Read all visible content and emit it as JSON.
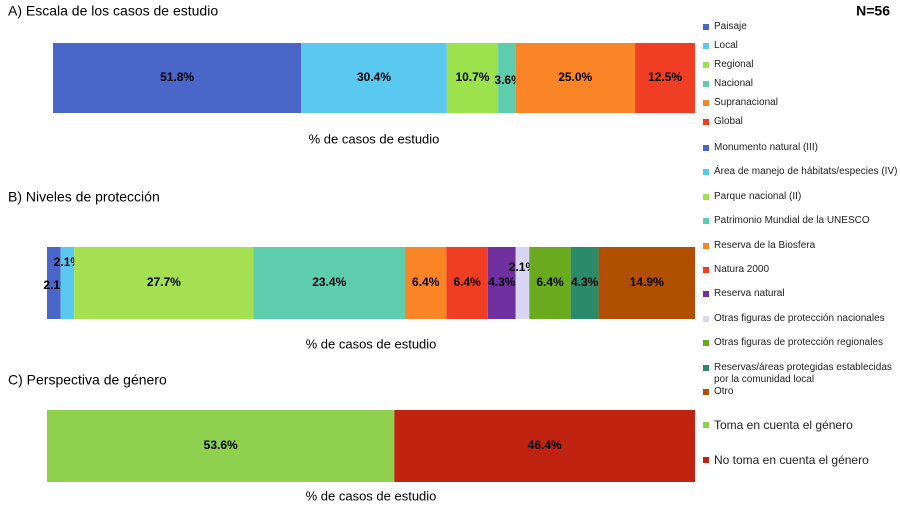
{
  "chart_data": [
    {
      "type": "bar",
      "orientation": "horizontal",
      "stacked": true,
      "title": "A) Escala de los casos de estudio",
      "annotation": "N=56",
      "x_label": "% de casos de estudio",
      "series": [
        {
          "name": "Paisaje",
          "color": "#4a66c8",
          "values": [
            51.8
          ],
          "value_labels": [
            "51.8%"
          ]
        },
        {
          "name": "Local",
          "color": "#5bc8f0",
          "values": [
            30.4
          ],
          "value_labels": [
            "30.4%"
          ]
        },
        {
          "name": "Regional",
          "color": "#9be24c",
          "values": [
            10.7
          ],
          "value_labels": [
            "10.7%"
          ]
        },
        {
          "name": "Nacional",
          "color": "#5ecdae",
          "values": [
            3.6
          ],
          "value_labels": [
            "3.6%"
          ]
        },
        {
          "name": "Supranacional",
          "color": "#f98527",
          "values": [
            25.0
          ],
          "value_labels": [
            "25.0%"
          ]
        },
        {
          "name": "Global",
          "color": "#ef3e23",
          "values": [
            12.5
          ],
          "value_labels": [
            "12.5%"
          ]
        }
      ]
    },
    {
      "type": "bar",
      "orientation": "horizontal",
      "stacked": true,
      "title": "B) Niveles de protección",
      "x_label": "% de casos de estudio",
      "series": [
        {
          "name": "Monumento natural (III)",
          "color": "#4a66c8",
          "values": [
            2.1
          ],
          "value_labels": [
            "2.1%"
          ]
        },
        {
          "name": "Área de manejo de hábitats/especies (IV)",
          "color": "#5bc8f0",
          "values": [
            2.1
          ],
          "value_labels": [
            "2.1%"
          ]
        },
        {
          "name": "Parque nacional (II)",
          "color": "#a4e052",
          "values": [
            27.7
          ],
          "value_labels": [
            "27.7%"
          ]
        },
        {
          "name": "Patrimonio Mundial de la UNESCO",
          "color": "#5ecdae",
          "values": [
            23.4
          ],
          "value_labels": [
            "23.4%"
          ]
        },
        {
          "name": "Reserva de la Biosfera",
          "color": "#f98527",
          "values": [
            6.4
          ],
          "value_labels": [
            "6.4%"
          ]
        },
        {
          "name": "Natura 2000",
          "color": "#ef3e23",
          "values": [
            6.4
          ],
          "value_labels": [
            "6.4%"
          ]
        },
        {
          "name": "Reserva natural",
          "color": "#7030a0",
          "values": [
            4.3
          ],
          "value_labels": [
            "4.3%"
          ]
        },
        {
          "name": "Otras figuras de protección nacionales",
          "color": "#d9d5f5",
          "values": [
            2.1
          ],
          "value_labels": [
            "2.1%"
          ]
        },
        {
          "name": "Otras figuras de protección regionales",
          "color": "#6aaa1e",
          "values": [
            6.4
          ],
          "value_labels": [
            "6.4%"
          ]
        },
        {
          "name": "Reservas/áreas protegidas establecidas por la comunidad local",
          "color": "#2a8a6a",
          "values": [
            4.3
          ],
          "value_labels": [
            "4.3%"
          ]
        },
        {
          "name": "Otro",
          "color": "#b04f00",
          "values": [
            14.9
          ],
          "value_labels": [
            "14.9%"
          ]
        }
      ]
    },
    {
      "type": "bar",
      "orientation": "horizontal",
      "stacked": true,
      "title": "C) Perspectiva de género",
      "x_label": "% de casos de estudio",
      "series": [
        {
          "name": "Toma en cuenta el género",
          "color": "#8fd14f",
          "values": [
            53.6
          ],
          "value_labels": [
            "53.6%"
          ]
        },
        {
          "name": "No toma en cuenta el género",
          "color": "#c0230f",
          "values": [
            46.4
          ],
          "value_labels": [
            "46.4%"
          ]
        }
      ]
    }
  ]
}
